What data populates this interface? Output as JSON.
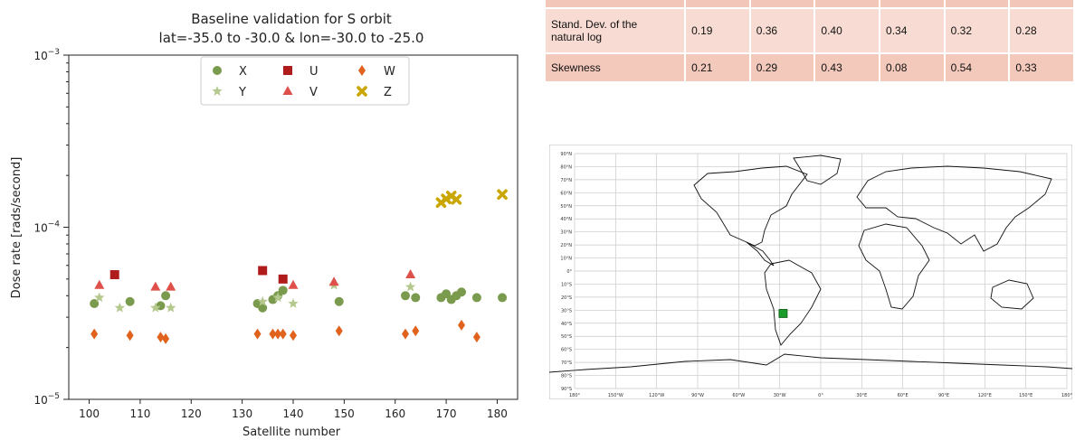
{
  "chart_data": {
    "type": "scatter",
    "title": "Baseline validation for S orbit",
    "subtitle": "lat=-35.0 to -30.0 & lon=-30.0 to -25.0",
    "xlabel": "Satellite number",
    "ylabel": "Dose rate [rads/second]",
    "xlim": [
      96,
      184
    ],
    "ylim": [
      1e-05,
      0.001
    ],
    "yscale": "log",
    "x_ticks": [
      100,
      110,
      120,
      130,
      140,
      150,
      160,
      170,
      180
    ],
    "y_ticks": [
      {
        "value": 0.001,
        "base": "10",
        "exp": "−3"
      },
      {
        "value": 0.0001,
        "base": "10",
        "exp": "−4"
      },
      {
        "value": 1e-05,
        "base": "10",
        "exp": "−5"
      }
    ],
    "grid": false,
    "legend_position": "top-center",
    "series": [
      {
        "name": "X",
        "marker": "circle",
        "color": "#7a9a4e",
        "x": [
          101,
          108,
          114,
          115,
          133,
          134,
          136,
          137,
          138,
          149,
          162,
          164,
          169,
          170,
          171,
          172,
          173,
          176,
          181
        ],
        "y": [
          3.6e-05,
          3.7e-05,
          3.5e-05,
          4e-05,
          3.6e-05,
          3.4e-05,
          3.8e-05,
          4e-05,
          4.3e-05,
          3.7e-05,
          4e-05,
          3.9e-05,
          3.9e-05,
          4.1e-05,
          3.8e-05,
          4e-05,
          4.2e-05,
          3.9e-05,
          3.9e-05
        ]
      },
      {
        "name": "Y",
        "marker": "star",
        "color": "#b5c98e",
        "x": [
          102,
          106,
          113,
          116,
          134,
          137,
          140,
          148,
          163
        ],
        "y": [
          3.9e-05,
          3.4e-05,
          3.4e-05,
          3.4e-05,
          3.7e-05,
          3.9e-05,
          3.6e-05,
          4.6e-05,
          4.5e-05
        ]
      },
      {
        "name": "U",
        "marker": "square",
        "color": "#b01c1c",
        "x": [
          105,
          134,
          138
        ],
        "y": [
          5.3e-05,
          5.6e-05,
          5e-05
        ]
      },
      {
        "name": "V",
        "marker": "triangle",
        "color": "#e0504a",
        "x": [
          102,
          113,
          116,
          140,
          148,
          163
        ],
        "y": [
          4.6e-05,
          4.5e-05,
          4.5e-05,
          4.6e-05,
          4.8e-05,
          5.3e-05
        ]
      },
      {
        "name": "W",
        "marker": "diamond",
        "color": "#e0621c",
        "x": [
          101,
          108,
          114,
          115,
          133,
          136,
          137,
          138,
          140,
          149,
          162,
          164,
          173,
          176
        ],
        "y": [
          2.4e-05,
          2.35e-05,
          2.3e-05,
          2.25e-05,
          2.4e-05,
          2.4e-05,
          2.4e-05,
          2.4e-05,
          2.35e-05,
          2.5e-05,
          2.4e-05,
          2.5e-05,
          2.7e-05,
          2.3e-05
        ]
      },
      {
        "name": "Z",
        "marker": "cross",
        "color": "#c9a600",
        "x": [
          169,
          170,
          171,
          172,
          181
        ],
        "y": [
          0.000139,
          0.000146,
          0.000152,
          0.000145,
          0.000155
        ]
      }
    ]
  },
  "stats_table": {
    "rows": [
      {
        "label": [
          "",
          ""
        ],
        "values": [
          "",
          "",
          "",
          "",
          "",
          ""
        ]
      },
      {
        "label": [
          "Stand. Dev. of the",
          "natural log"
        ],
        "values": [
          "0.19",
          "0.36",
          "0.40",
          "0.34",
          "0.32",
          "0.28"
        ]
      },
      {
        "label": [
          "Skewness",
          ""
        ],
        "values": [
          "0.21",
          "0.29",
          "0.43",
          "0.08",
          "0.54",
          "0.33"
        ]
      }
    ]
  },
  "map": {
    "lat_labels": [
      "90°N",
      "80°N",
      "70°N",
      "60°N",
      "50°N",
      "40°N",
      "30°N",
      "20°N",
      "10°N",
      "0°",
      "10°S",
      "20°S",
      "30°S",
      "40°S",
      "50°S",
      "60°S",
      "70°S",
      "80°S",
      "90°S"
    ],
    "lon_labels": [
      "180°",
      "150°W",
      "120°W",
      "90°W",
      "60°W",
      "30°W",
      "0°",
      "30°E",
      "60°E",
      "90°E",
      "120°E",
      "150°E",
      "180°"
    ],
    "marker_color": "#1a9c2a",
    "marker_lat": -32.5,
    "marker_lon": -27.5
  }
}
